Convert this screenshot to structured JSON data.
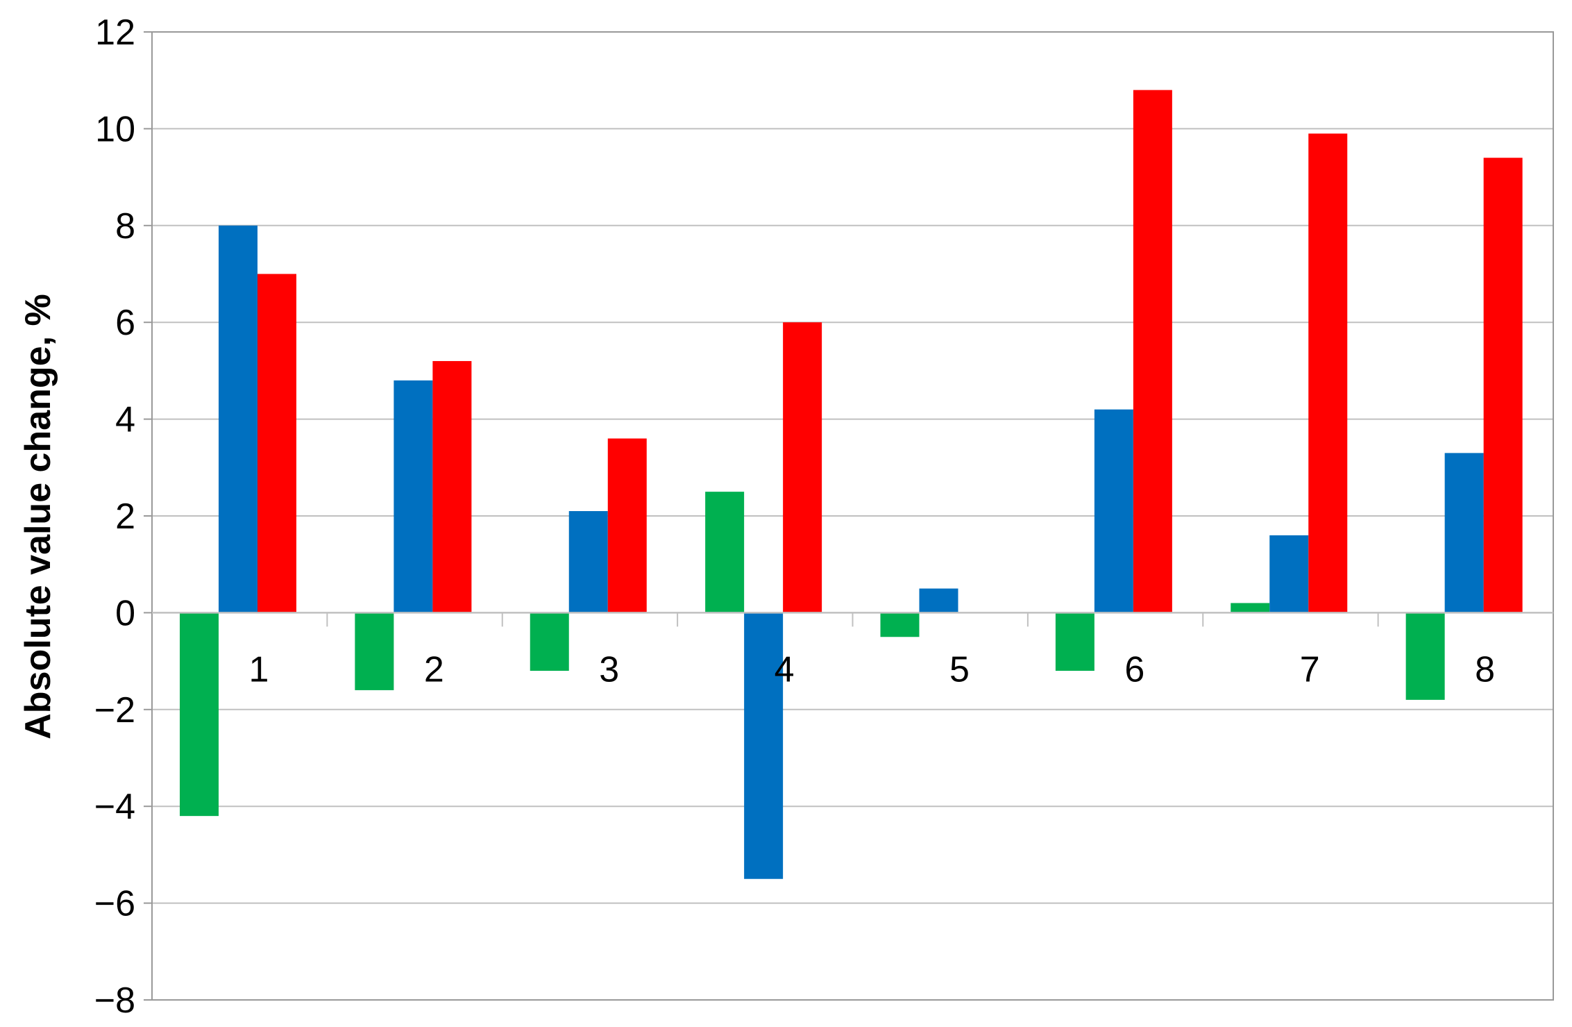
{
  "chart_data": {
    "type": "bar",
    "title": "",
    "xlabel": "",
    "ylabel": "Absolute value change, %",
    "categories": [
      "1",
      "2",
      "3",
      "4",
      "5",
      "6",
      "7",
      "8"
    ],
    "ylim": [
      -8,
      12
    ],
    "yticks": [
      12,
      10,
      8,
      6,
      4,
      2,
      0,
      -2,
      -4,
      -6,
      -8
    ],
    "ytick_labels": [
      "12",
      "10",
      "8",
      "6",
      "4",
      "2",
      "0",
      "−2",
      "−4",
      "−6",
      "−8"
    ],
    "grid": true,
    "legend": "none",
    "series": [
      {
        "color": "#00b050",
        "values": [
          -4.2,
          -1.6,
          -1.2,
          2.5,
          -0.5,
          -1.2,
          0.2,
          -1.8
        ]
      },
      {
        "color": "#0070c0",
        "values": [
          8.0,
          4.8,
          2.1,
          -5.5,
          0.5,
          4.2,
          1.6,
          3.3
        ]
      },
      {
        "color": "#ff0000",
        "values": [
          7.0,
          5.2,
          3.6,
          6.0,
          null,
          10.8,
          9.9,
          9.4
        ]
      }
    ],
    "colors": {
      "grid": "#c0c0c0",
      "plot_border": "#999999",
      "zero_line": "#c0c0c0"
    }
  }
}
